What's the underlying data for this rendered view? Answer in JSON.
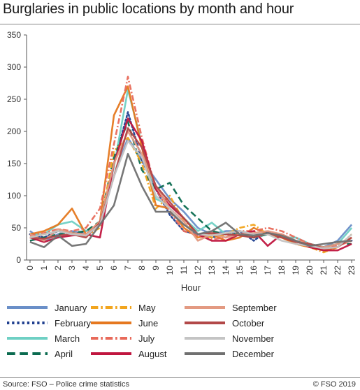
{
  "page": {
    "title": "Burglaries in public locations by month and hour",
    "source": "Source: FSO – Police crime statistics",
    "copyright": "© FSO 2019"
  },
  "chart_data": {
    "type": "line",
    "title": "Burglaries in public locations by month and hour",
    "xlabel": "Hour",
    "ylabel": "",
    "x": [
      0,
      1,
      2,
      3,
      4,
      5,
      6,
      7,
      8,
      9,
      10,
      11,
      12,
      13,
      14,
      15,
      16,
      17,
      18,
      19,
      20,
      21,
      22,
      23
    ],
    "xticklabels": [
      "0",
      "1",
      "2",
      "3",
      "4",
      "5",
      "6",
      "7",
      "8",
      "9",
      "10",
      "11",
      "12",
      "13",
      "14",
      "15",
      "16",
      "17",
      "18",
      "19",
      "20",
      "21",
      "22",
      "23"
    ],
    "ylim": [
      0,
      350
    ],
    "yticks": [
      0,
      50,
      100,
      150,
      200,
      250,
      300,
      350
    ],
    "grid": false,
    "legend_position": "bottom",
    "series": [
      {
        "name": "January",
        "color": "#6a8fc8",
        "style": "solid",
        "values": [
          45,
          30,
          40,
          45,
          40,
          55,
          130,
          190,
          155,
          125,
          95,
          75,
          50,
          40,
          45,
          45,
          40,
          40,
          35,
          35,
          25,
          20,
          30,
          55
        ]
      },
      {
        "name": "February",
        "color": "#1f3f8f",
        "style": "dotted",
        "values": [
          40,
          35,
          45,
          40,
          45,
          55,
          150,
          230,
          155,
          110,
          70,
          45,
          40,
          35,
          40,
          45,
          30,
          45,
          35,
          30,
          25,
          20,
          25,
          30
        ]
      },
      {
        "name": "March",
        "color": "#6fd0c4",
        "style": "solid",
        "values": [
          40,
          40,
          55,
          60,
          45,
          55,
          145,
          265,
          180,
          95,
          85,
          65,
          45,
          58,
          40,
          40,
          35,
          40,
          35,
          35,
          25,
          20,
          25,
          50
        ]
      },
      {
        "name": "April",
        "color": "#0b6b50",
        "style": "dashed",
        "values": [
          30,
          35,
          40,
          42,
          45,
          60,
          160,
          215,
          140,
          110,
          120,
          85,
          65,
          45,
          40,
          40,
          35,
          40,
          35,
          30,
          25,
          20,
          25,
          25
        ]
      },
      {
        "name": "May",
        "color": "#f2a51e",
        "style": "dashdot",
        "values": [
          35,
          40,
          45,
          42,
          38,
          50,
          170,
          190,
          150,
          80,
          100,
          60,
          40,
          35,
          40,
          50,
          55,
          40,
          35,
          25,
          20,
          12,
          20,
          40
        ]
      },
      {
        "name": "June",
        "color": "#e5781f",
        "style": "solid",
        "values": [
          40,
          45,
          55,
          80,
          40,
          60,
          225,
          270,
          175,
          85,
          80,
          50,
          35,
          40,
          30,
          35,
          50,
          40,
          35,
          25,
          20,
          15,
          20,
          35
        ]
      },
      {
        "name": "July",
        "color": "#e86a5a",
        "style": "dashdot",
        "values": [
          38,
          42,
          48,
          45,
          50,
          80,
          180,
          285,
          190,
          110,
          75,
          45,
          38,
          32,
          35,
          45,
          45,
          50,
          45,
          35,
          25,
          18,
          22,
          30
        ]
      },
      {
        "name": "August",
        "color": "#c0163f",
        "style": "solid",
        "values": [
          35,
          28,
          35,
          38,
          40,
          35,
          150,
          220,
          185,
          110,
          85,
          65,
          40,
          30,
          30,
          40,
          45,
          22,
          40,
          30,
          20,
          15,
          15,
          25
        ]
      },
      {
        "name": "September",
        "color": "#e39a82",
        "style": "solid",
        "values": [
          40,
          30,
          48,
          42,
          40,
          60,
          150,
          200,
          165,
          115,
          80,
          60,
          30,
          40,
          35,
          40,
          42,
          45,
          40,
          30,
          25,
          20,
          25,
          30
        ]
      },
      {
        "name": "October",
        "color": "#b24848",
        "style": "solid",
        "values": [
          35,
          33,
          38,
          40,
          35,
          58,
          130,
          205,
          175,
          115,
          90,
          65,
          40,
          42,
          40,
          38,
          35,
          42,
          35,
          28,
          25,
          18,
          20,
          35
        ]
      },
      {
        "name": "November",
        "color": "#c4c4c4",
        "style": "solid",
        "values": [
          35,
          40,
          45,
          40,
          38,
          55,
          130,
          185,
          160,
          100,
          80,
          55,
          40,
          38,
          42,
          45,
          40,
          40,
          30,
          25,
          22,
          18,
          20,
          40
        ]
      },
      {
        "name": "December",
        "color": "#707070",
        "style": "solid",
        "values": [
          28,
          20,
          38,
          22,
          25,
          55,
          85,
          165,
          115,
          75,
          75,
          55,
          40,
          45,
          58,
          40,
          38,
          42,
          38,
          30,
          22,
          25,
          28,
          30
        ]
      }
    ]
  }
}
